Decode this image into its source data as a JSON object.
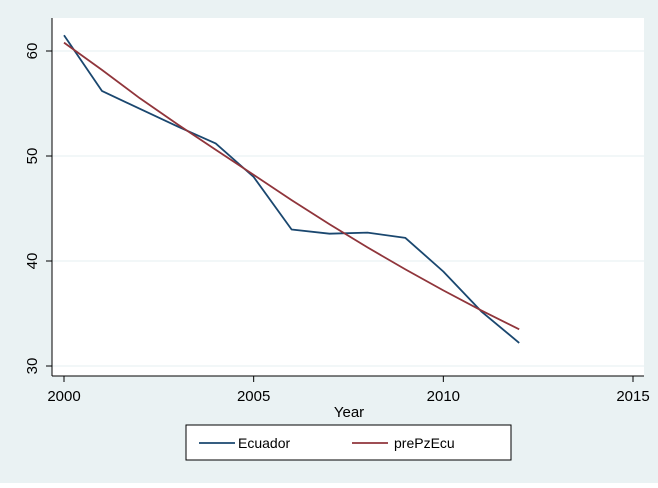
{
  "chart_data": {
    "type": "line",
    "title": "",
    "xlabel": "Year",
    "ylabel": "",
    "xlim": [
      2000,
      2015
    ],
    "ylim": [
      30,
      62
    ],
    "xticks": [
      2000,
      2005,
      2010,
      2015
    ],
    "yticks": [
      30,
      40,
      50,
      60
    ],
    "grid": true,
    "legend_position": "bottom",
    "series": [
      {
        "name": "Ecuador",
        "color": "#1a476f",
        "x": [
          2000,
          2001,
          2002,
          2003,
          2004,
          2005,
          2006,
          2007,
          2008,
          2009,
          2010,
          2011,
          2012
        ],
        "values": [
          61.5,
          56.2,
          54.5,
          52.8,
          51.2,
          48.0,
          43.0,
          42.6,
          42.7,
          42.2,
          39.0,
          35.2,
          32.2
        ]
      },
      {
        "name": "prePzEcu",
        "color": "#90353b",
        "x": [
          2000,
          2001,
          2002,
          2003,
          2004,
          2005,
          2006,
          2007,
          2008,
          2009,
          2010,
          2011,
          2012
        ],
        "values": [
          60.8,
          58.2,
          55.5,
          53.0,
          50.6,
          48.2,
          45.8,
          43.5,
          41.3,
          39.2,
          37.2,
          35.3,
          33.5
        ]
      }
    ]
  }
}
